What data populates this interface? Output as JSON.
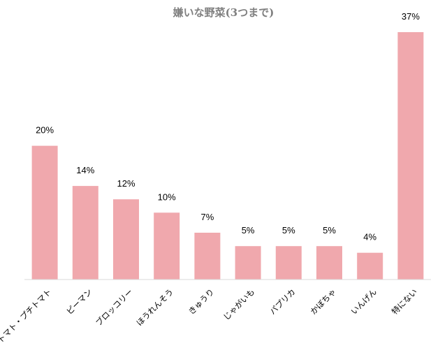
{
  "chart_data": {
    "type": "bar",
    "title": "嫌いな野菜(3つまで)",
    "xlabel": "",
    "ylabel": "",
    "categories": [
      "トマト・プチトマト",
      "ピーマン",
      "ブロッコリー",
      "ほうれんそう",
      "きゅうり",
      "じゃがいも",
      "パプリカ",
      "かぼちゃ",
      "いんげん",
      "特にない"
    ],
    "values": [
      20,
      14,
      12,
      10,
      7,
      5,
      5,
      5,
      4,
      37
    ],
    "value_labels": [
      "20%",
      "14%",
      "12%",
      "10%",
      "7%",
      "5%",
      "5%",
      "5%",
      "4%",
      "37%"
    ],
    "ylim": [
      0,
      37
    ],
    "grid": false,
    "legend": "none",
    "bar_color": "#f0a8ad",
    "axis_color": "#d9d9d9"
  }
}
